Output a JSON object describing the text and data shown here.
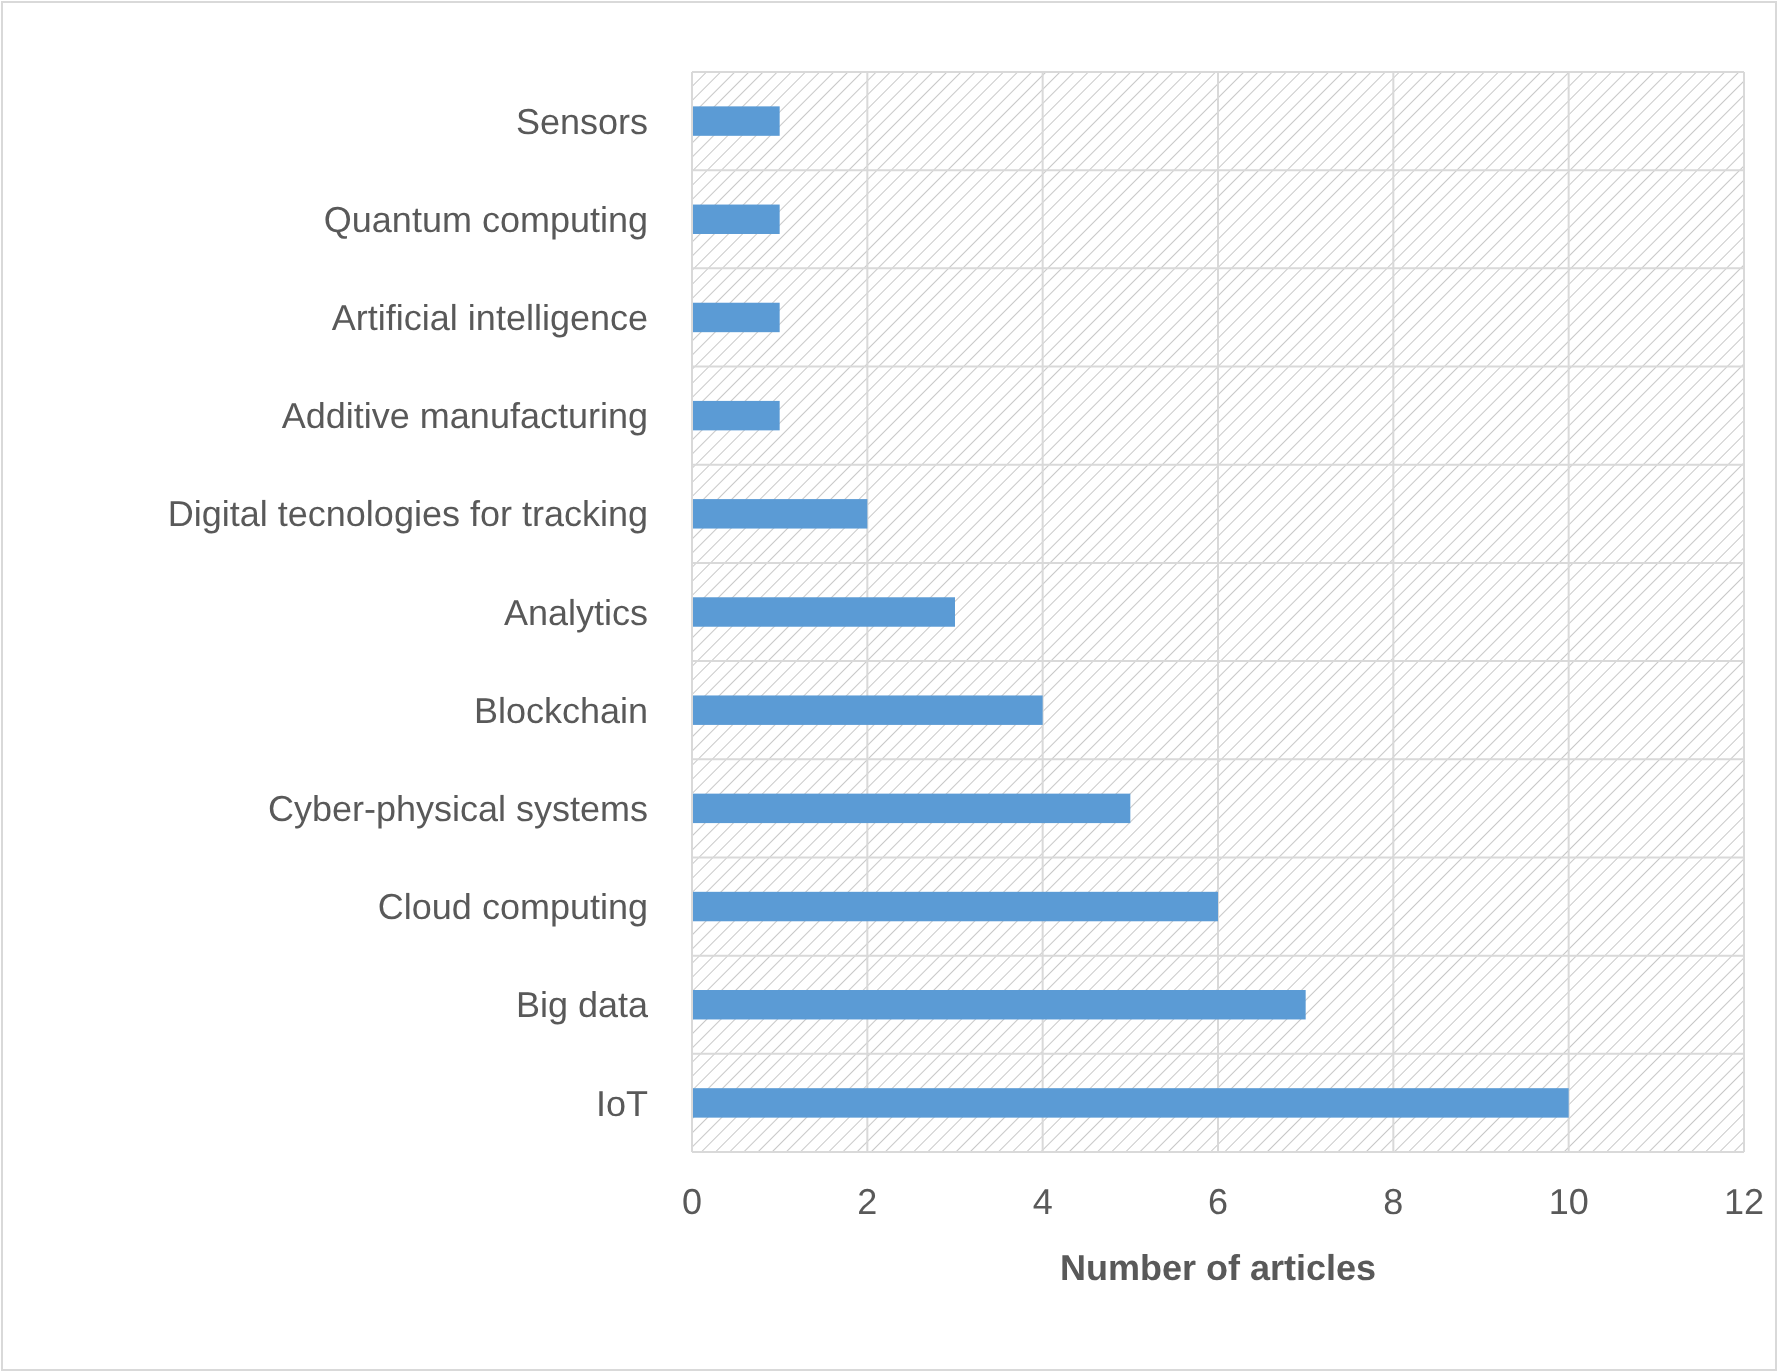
{
  "chart_data": {
    "type": "bar",
    "orientation": "horizontal",
    "xlabel": "Number of articles",
    "categories": [
      "Sensors",
      "Quantum computing",
      "Artificial intelligence",
      "Additive manufacturing",
      "Digital tecnologies for tracking",
      "Analytics",
      "Blockchain",
      "Cyber-physical systems",
      "Cloud computing",
      "Big data",
      "IoT"
    ],
    "values": [
      1,
      1,
      1,
      1,
      2,
      3,
      4,
      5,
      6,
      7,
      10
    ],
    "color": "#5b9bd5",
    "xlim": [
      0,
      12
    ],
    "xticks": [
      0,
      2,
      4,
      6,
      8,
      10,
      12
    ],
    "grid": true
  }
}
